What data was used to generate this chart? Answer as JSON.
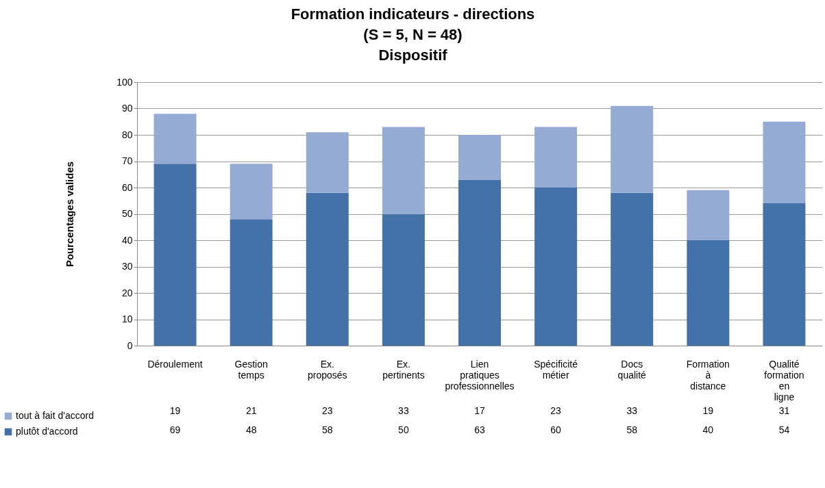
{
  "chart_data": {
    "type": "bar",
    "title": "Formation indicateurs - directions\n(S = 5, N = 48)\nDispositif",
    "ylabel": "Pourcentages valides",
    "categories": [
      "Déroulement",
      "Gestion temps",
      "Ex. proposés",
      "Ex. pertinents",
      "Lien pratiques professionnelles",
      "Spécificité métier",
      "Docs qualité",
      "Formation à distance",
      "Qualité formation en ligne"
    ],
    "series": [
      {
        "name": "plutôt d'accord",
        "color": "#4472a8",
        "values": [
          69,
          48,
          58,
          50,
          63,
          60,
          58,
          40,
          54
        ]
      },
      {
        "name": "tout à fait d'accord",
        "color": "#95abd4",
        "values": [
          19,
          21,
          23,
          33,
          17,
          23,
          33,
          19,
          31
        ]
      }
    ],
    "stacked": true,
    "ylim": [
      0,
      100
    ],
    "yticks": [
      0,
      10,
      20,
      30,
      40,
      50,
      60,
      70,
      80,
      90,
      100
    ],
    "grid": "y",
    "legend": "bottom",
    "data_labels": true
  }
}
